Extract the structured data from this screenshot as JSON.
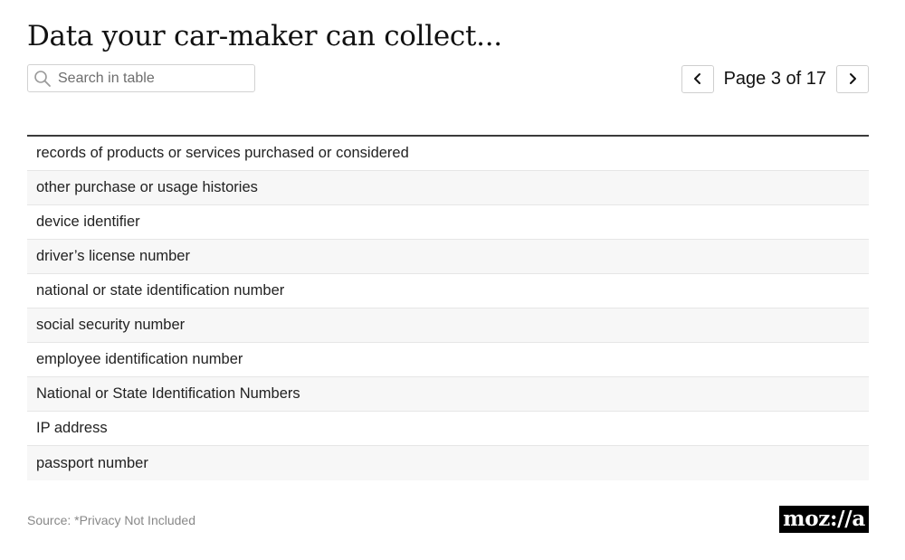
{
  "title": "Data your car-maker can collect...",
  "search": {
    "placeholder": "Search in table",
    "value": ""
  },
  "pagination": {
    "label": "Page 3 of 17",
    "current_page": 3,
    "total_pages": 17
  },
  "table": {
    "rows": [
      "records of products or services purchased or considered",
      "other purchase or usage histories",
      "device identifier",
      "driver’s license number",
      "national or state identification number",
      "social security number",
      "employee identification number",
      "National or State Identification Numbers",
      "IP address",
      "passport number"
    ]
  },
  "footer": {
    "source": "Source: *Privacy Not Included",
    "logo_text": "moz://a"
  }
}
